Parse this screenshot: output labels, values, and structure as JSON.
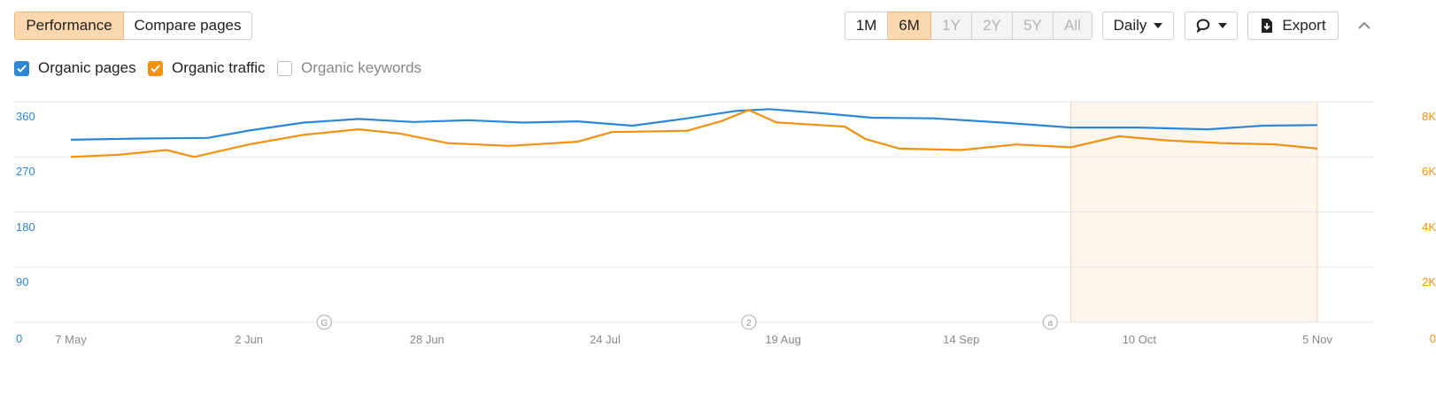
{
  "toolbar": {
    "performance_label": "Performance",
    "compare_label": "Compare pages",
    "ranges": [
      "1M",
      "6M",
      "1Y",
      "2Y",
      "5Y",
      "All"
    ],
    "active_range": "6M",
    "interval_label": "Daily",
    "export_label": "Export"
  },
  "metrics": [
    {
      "label": "Organic pages",
      "checked": true,
      "color": "#2d86d6"
    },
    {
      "label": "Organic traffic",
      "checked": true,
      "color": "#f29110"
    },
    {
      "label": "Organic keywords",
      "checked": false,
      "color": "#999999"
    }
  ],
  "chart_data": {
    "type": "line",
    "x_ticks": [
      "7 May",
      "2 Jun",
      "28 Jun",
      "24 Jul",
      "19 Aug",
      "14 Sep",
      "10 Oct",
      "5 Nov"
    ],
    "x_range": [
      "7 May",
      "5 Nov"
    ],
    "y_left": {
      "ticks": [
        "0",
        "90",
        "180",
        "270",
        "360"
      ],
      "range": [
        0,
        360
      ]
    },
    "y_right": {
      "ticks": [
        "0",
        "2K",
        "4K",
        "6K",
        "8K"
      ],
      "range": [
        0,
        8000
      ]
    },
    "annotations": [
      {
        "marker": "G",
        "date": "13 Jun"
      },
      {
        "marker": "2",
        "date": "14 Aug"
      },
      {
        "marker": "a",
        "date": "27 Sep"
      }
    ],
    "highlight_range": [
      "30 Sep",
      "5 Nov"
    ],
    "series": [
      {
        "name": "Organic pages",
        "axis": "left",
        "color": "#2d86d6",
        "points": [
          [
            "7 May",
            298
          ],
          [
            "17 May",
            300
          ],
          [
            "27 May",
            301
          ],
          [
            "2 Jun",
            313
          ],
          [
            "10 Jun",
            326
          ],
          [
            "18 Jun",
            332
          ],
          [
            "26 Jun",
            327
          ],
          [
            "4 Jul",
            330
          ],
          [
            "12 Jul",
            326
          ],
          [
            "20 Jul",
            328
          ],
          [
            "28 Jul",
            321
          ],
          [
            "5 Aug",
            333
          ],
          [
            "12 Aug",
            345
          ],
          [
            "17 Aug",
            348
          ],
          [
            "25 Aug",
            341
          ],
          [
            "1 Sep",
            334
          ],
          [
            "10 Sep",
            333
          ],
          [
            "20 Sep",
            326
          ],
          [
            "30 Sep",
            318
          ],
          [
            "10 Oct",
            318
          ],
          [
            "20 Oct",
            315
          ],
          [
            "28 Oct",
            321
          ],
          [
            "5 Nov",
            322
          ]
        ]
      },
      {
        "name": "Organic traffic",
        "axis": "right",
        "color": "#f29110",
        "points": [
          [
            "7 May",
            6000
          ],
          [
            "14 May",
            6080
          ],
          [
            "21 May",
            6250
          ],
          [
            "25 May",
            6000
          ],
          [
            "2 Jun",
            6450
          ],
          [
            "10 Jun",
            6800
          ],
          [
            "18 Jun",
            7000
          ],
          [
            "24 Jun",
            6850
          ],
          [
            "1 Jul",
            6500
          ],
          [
            "10 Jul",
            6400
          ],
          [
            "20 Jul",
            6550
          ],
          [
            "25 Jul",
            6900
          ],
          [
            "5 Aug",
            6950
          ],
          [
            "10 Aug",
            7300
          ],
          [
            "14 Aug",
            7700
          ],
          [
            "18 Aug",
            7250
          ],
          [
            "28 Aug",
            7100
          ],
          [
            "31 Aug",
            6650
          ],
          [
            "5 Sep",
            6300
          ],
          [
            "14 Sep",
            6250
          ],
          [
            "22 Sep",
            6450
          ],
          [
            "30 Sep",
            6350
          ],
          [
            "7 Oct",
            6750
          ],
          [
            "14 Oct",
            6600
          ],
          [
            "22 Oct",
            6500
          ],
          [
            "30 Oct",
            6450
          ],
          [
            "5 Nov",
            6300
          ]
        ]
      }
    ]
  }
}
